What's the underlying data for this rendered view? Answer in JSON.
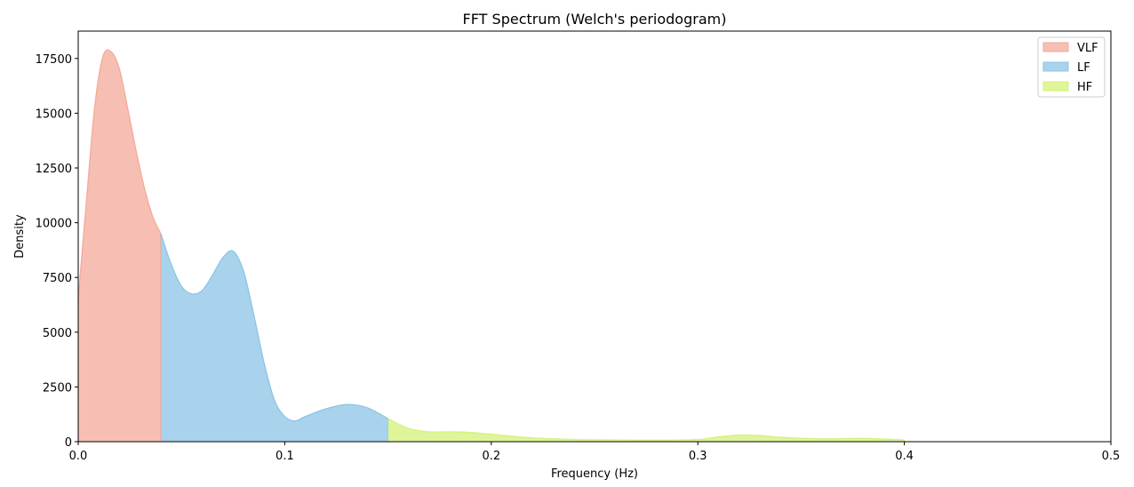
{
  "chart_data": {
    "type": "area",
    "title": "FFT Spectrum (Welch's periodogram)",
    "xlabel": "Frequency (Hz)",
    "ylabel": "Density",
    "xlim": [
      0,
      0.5
    ],
    "ylim": [
      0,
      18750
    ],
    "xticks": [
      0.0,
      0.1,
      0.2,
      0.3,
      0.4,
      0.5
    ],
    "xtick_labels": [
      "0.0",
      "0.1",
      "0.2",
      "0.3",
      "0.4",
      "0.5"
    ],
    "yticks": [
      0,
      2500,
      5000,
      7500,
      10000,
      12500,
      15000,
      17500
    ],
    "ytick_labels": [
      "0",
      "2500",
      "5000",
      "7500",
      "10000",
      "12500",
      "15000",
      "17500"
    ],
    "grid": false,
    "legend": {
      "position": "top-right"
    },
    "series": [
      {
        "name": "VLF",
        "color": "#f4a99a",
        "x": [
          0.0,
          0.004,
          0.008,
          0.012,
          0.016,
          0.02,
          0.024,
          0.028,
          0.032,
          0.036,
          0.04
        ],
        "values": [
          6500,
          11000,
          15300,
          17600,
          17800,
          17000,
          15200,
          13300,
          11600,
          10300,
          9500
        ]
      },
      {
        "name": "LF",
        "color": "#8cc4e6",
        "x": [
          0.04,
          0.045,
          0.05,
          0.055,
          0.06,
          0.065,
          0.07,
          0.075,
          0.08,
          0.085,
          0.09,
          0.095,
          0.1,
          0.105,
          0.11,
          0.12,
          0.13,
          0.14,
          0.15
        ],
        "values": [
          9500,
          8100,
          7100,
          6750,
          6900,
          7600,
          8400,
          8700,
          7800,
          5800,
          3600,
          1900,
          1150,
          950,
          1150,
          1500,
          1700,
          1550,
          1050
        ]
      },
      {
        "name": "HF",
        "color": "#d4f27a",
        "x": [
          0.15,
          0.16,
          0.17,
          0.18,
          0.19,
          0.2,
          0.21,
          0.22,
          0.24,
          0.26,
          0.28,
          0.3,
          0.31,
          0.32,
          0.33,
          0.34,
          0.36,
          0.38,
          0.39,
          0.4
        ],
        "values": [
          1050,
          600,
          450,
          450,
          420,
          340,
          250,
          170,
          100,
          80,
          70,
          100,
          220,
          300,
          280,
          200,
          130,
          150,
          120,
          80
        ]
      }
    ]
  }
}
